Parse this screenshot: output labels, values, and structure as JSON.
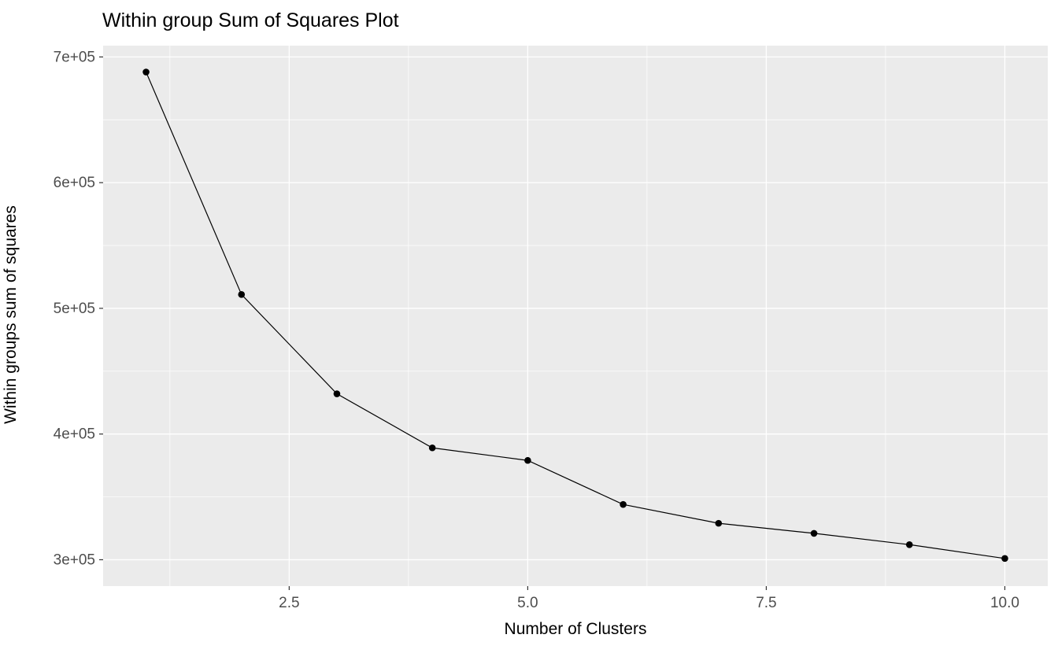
{
  "chart_data": {
    "type": "line",
    "title": "Within group Sum of Squares Plot",
    "xlabel": "Number of Clusters",
    "ylabel": "Within groups sum of squares",
    "x": [
      1,
      2,
      3,
      4,
      5,
      6,
      7,
      8,
      9,
      10
    ],
    "y": [
      688000,
      511000,
      432000,
      389000,
      379000,
      344000,
      329000,
      321000,
      312000,
      301000
    ],
    "xlim": [
      0.55,
      10.45
    ],
    "ylim": [
      279000,
      709000
    ],
    "x_ticks": [
      {
        "value": 2.5,
        "label": "2.5"
      },
      {
        "value": 5.0,
        "label": "5.0"
      },
      {
        "value": 7.5,
        "label": "7.5"
      },
      {
        "value": 10.0,
        "label": "10.0"
      }
    ],
    "y_ticks": [
      {
        "value": 300000,
        "label": "3e+05"
      },
      {
        "value": 400000,
        "label": "4e+05"
      },
      {
        "value": 500000,
        "label": "5e+05"
      },
      {
        "value": 600000,
        "label": "6e+05"
      },
      {
        "value": 700000,
        "label": "7e+05"
      }
    ],
    "x_minor": [
      1.25,
      3.75,
      6.25,
      8.75
    ],
    "y_minor": [
      350000,
      450000,
      550000,
      650000
    ],
    "legend": "none",
    "grid": "on",
    "style": {
      "panel_bg": "#EBEBEB",
      "grid_color": "#FFFFFF",
      "line_color": "#000000",
      "point_color": "#000000",
      "tick_label_color": "#4D4D4D",
      "tick_mark_color": "#333333"
    }
  }
}
